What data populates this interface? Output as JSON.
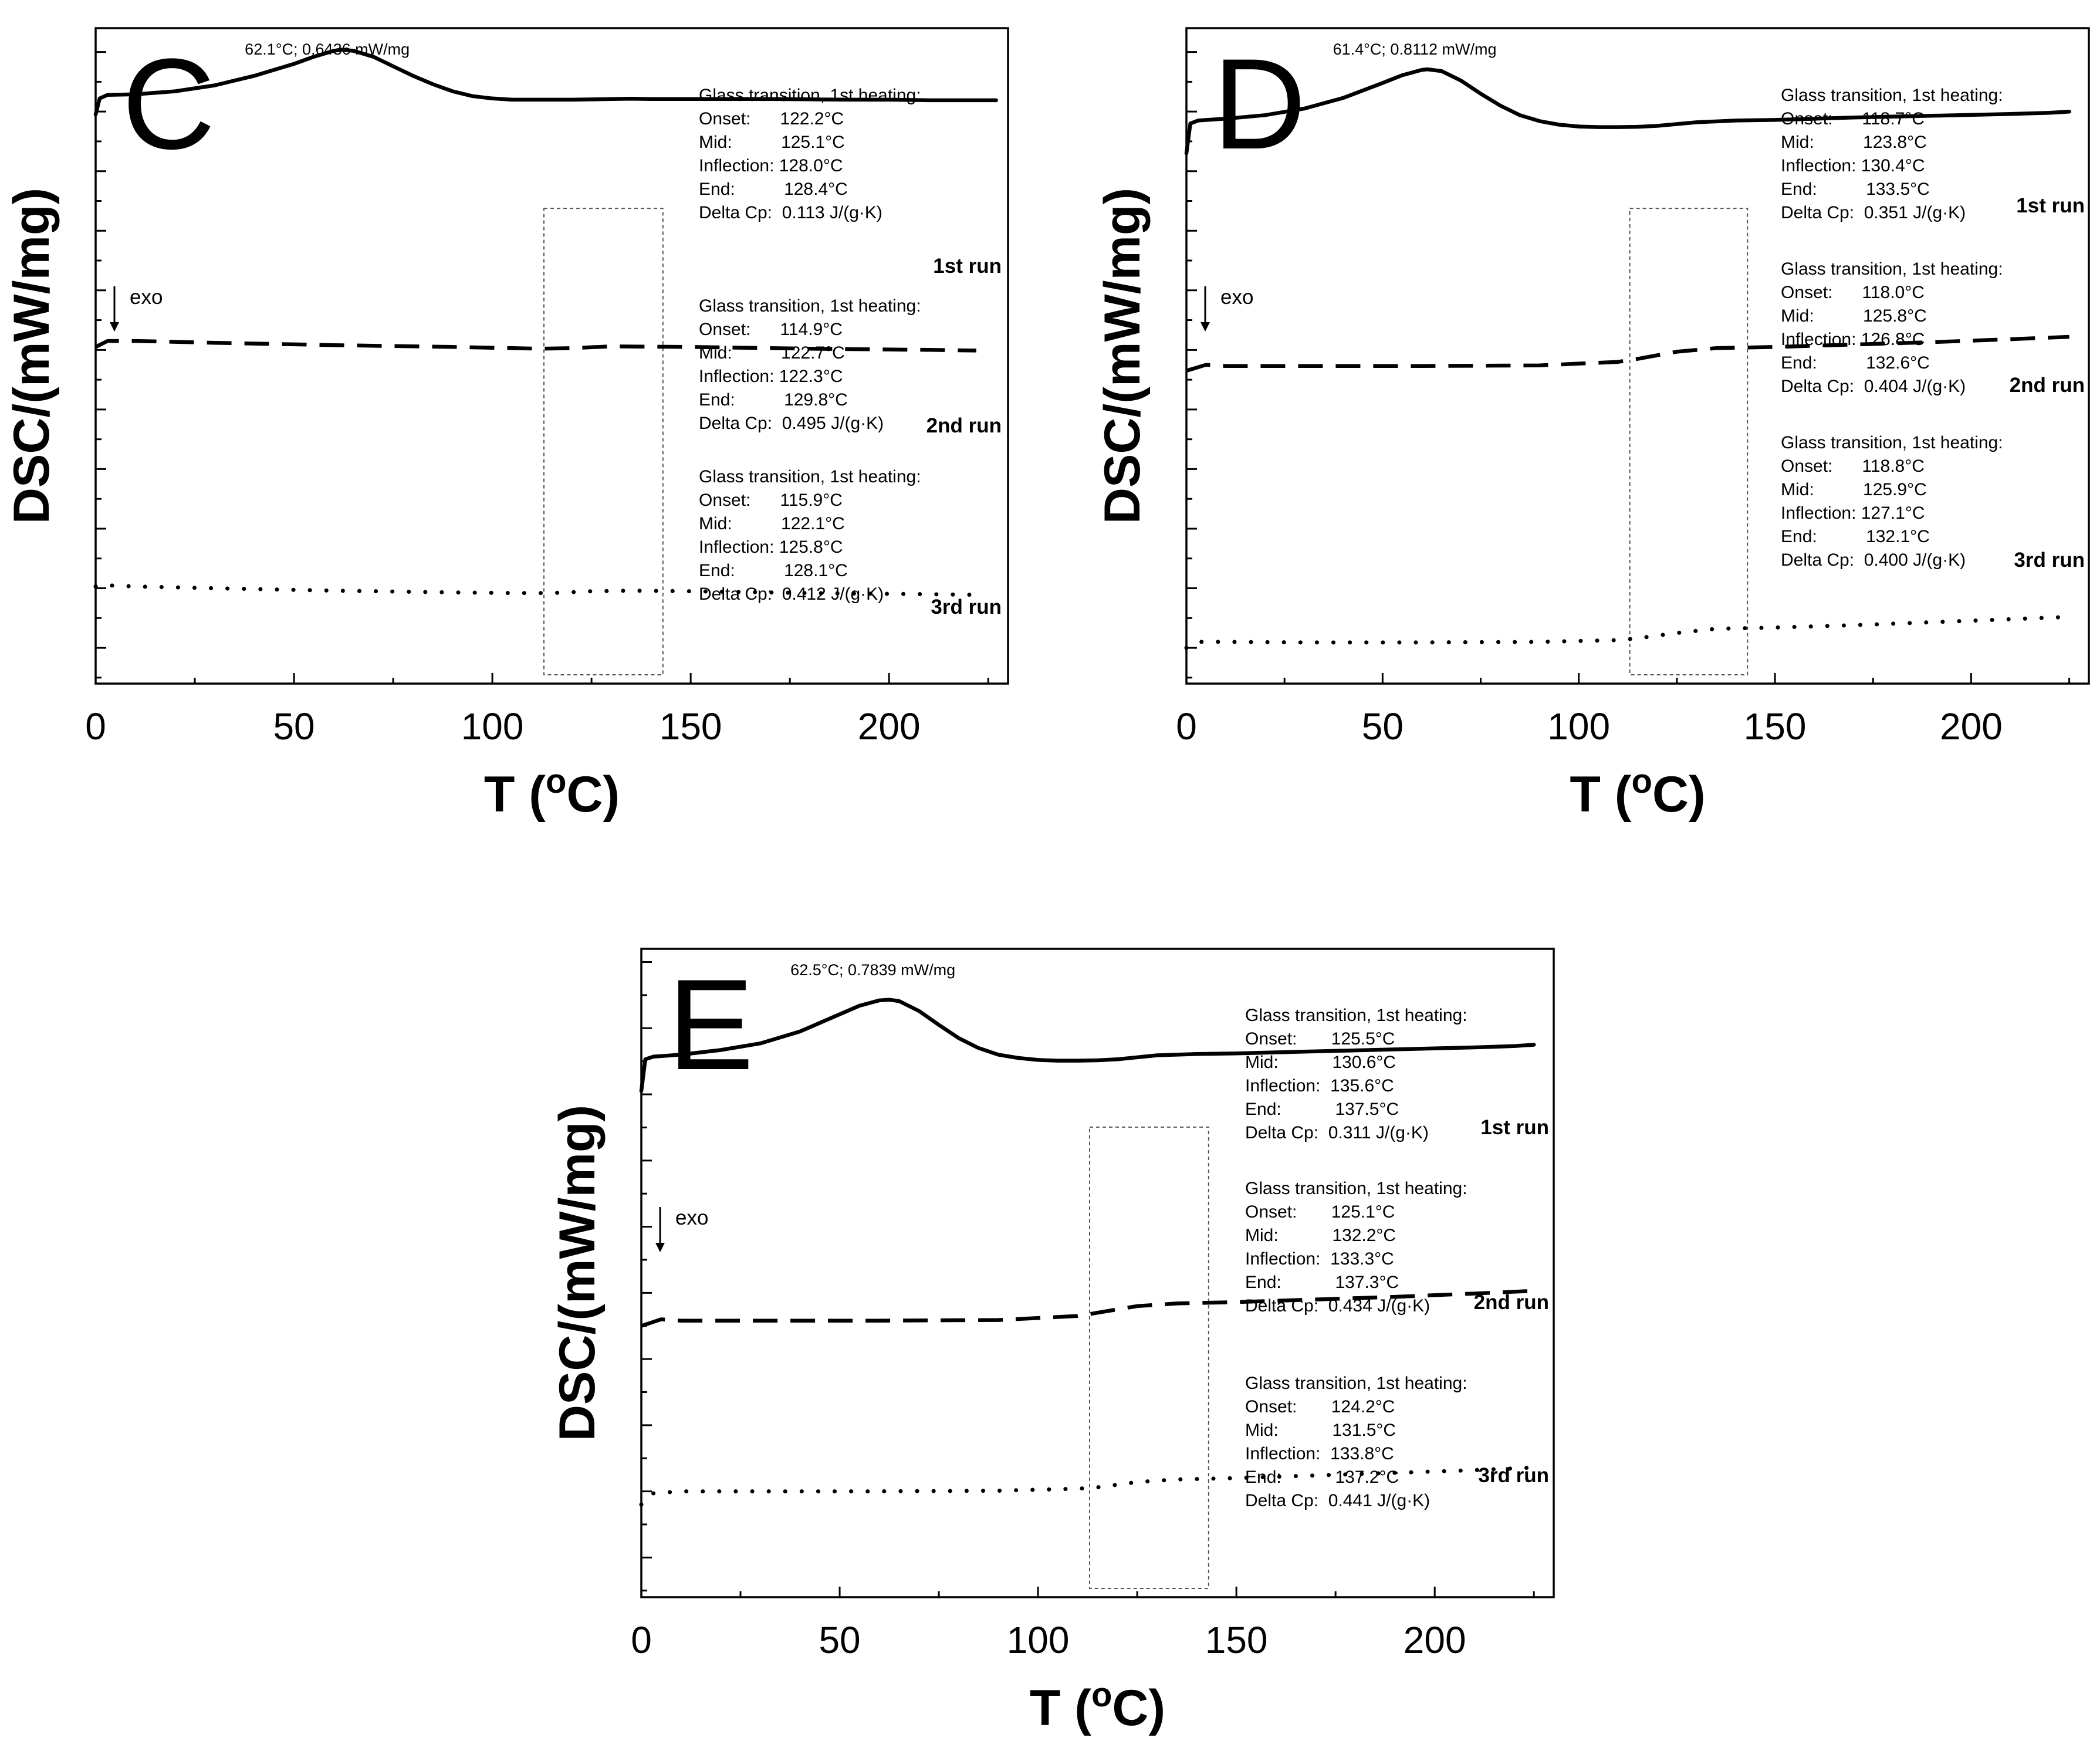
{
  "chart_data": [
    {
      "panel": "C",
      "type": "line",
      "xlabel": "T (oC)",
      "ylabel": "DSC/(mW/mg)",
      "xlim": [
        0,
        230
      ],
      "xticks": [
        0,
        50,
        100,
        150,
        200
      ],
      "peak_annotation": "62.1°C; 0.6436 mW/mg",
      "exo_label": "exo",
      "zoom_region": [
        113,
        143
      ],
      "series": [
        {
          "name": "1st run",
          "style": "solid",
          "level": 8.4,
          "x": [
            0,
            1,
            3,
            10,
            20,
            30,
            40,
            50,
            55,
            60,
            62.1,
            65,
            70,
            75,
            80,
            85,
            90,
            95,
            100,
            105,
            110,
            120,
            130,
            135,
            140,
            150,
            160,
            170,
            180,
            190,
            200,
            210,
            220,
            227
          ],
          "y": [
            -0.45,
            -0.18,
            -0.12,
            -0.11,
            -0.06,
            0.04,
            0.2,
            0.4,
            0.52,
            0.62,
            0.64,
            0.62,
            0.52,
            0.36,
            0.2,
            0.06,
            -0.06,
            -0.14,
            -0.18,
            -0.2,
            -0.2,
            -0.2,
            -0.19,
            -0.185,
            -0.19,
            -0.19,
            -0.19,
            -0.19,
            -0.195,
            -0.2,
            -0.2,
            -0.21,
            -0.21,
            -0.21
          ],
          "glass_transition": {
            "heading": "Glass transition, 1st heating:",
            "lines": [
              "Onset:      122.2°C",
              "Mid:          125.1°C",
              "Inflection: 128.0°C",
              "End:          128.4°C",
              "Delta Cp:  0.113 J/(g·K)"
            ]
          }
        },
        {
          "name": "2nd run",
          "style": "dashed",
          "level": 4.15,
          "x": [
            0,
            3,
            10,
            30,
            60,
            90,
            105,
            112,
            120,
            130,
            150,
            180,
            210,
            222
          ],
          "y": [
            -0.1,
            0.0,
            0.0,
            -0.03,
            -0.07,
            -0.1,
            -0.12,
            -0.13,
            -0.12,
            -0.09,
            -0.1,
            -0.13,
            -0.15,
            -0.16
          ],
          "glass_transition": {
            "heading": "Glass transition, 1st heating:",
            "lines": [
              "Onset:      114.9°C",
              "Mid:          122.7°C",
              "Inflection: 122.3°C",
              "End:          129.8°C",
              "Delta Cp:  0.495 J/(g·K)"
            ]
          }
        },
        {
          "name": "3rd run",
          "style": "dotted",
          "level": 0.05,
          "x": [
            0,
            3,
            10,
            30,
            60,
            90,
            105,
            115,
            125,
            135,
            150,
            180,
            210,
            222
          ],
          "y": [
            -0.02,
            0.0,
            -0.02,
            -0.05,
            -0.09,
            -0.12,
            -0.13,
            -0.13,
            -0.1,
            -0.09,
            -0.1,
            -0.13,
            -0.15,
            -0.16
          ],
          "glass_transition": {
            "heading": "Glass transition, 1st heating:",
            "lines": [
              "Onset:      115.9°C",
              "Mid:          122.1°C",
              "Inflection: 125.8°C",
              "End:          128.1°C",
              "Delta Cp:  0.412 J/(g·K)"
            ]
          }
        }
      ]
    },
    {
      "panel": "D",
      "type": "line",
      "xlabel": "T (oC)",
      "ylabel": "DSC/(mW/mg)",
      "xlim": [
        0,
        230
      ],
      "xticks": [
        0,
        50,
        100,
        150,
        200
      ],
      "peak_annotation": "61.4°C; 0.8112 mW/mg",
      "exo_label": "exo",
      "zoom_region": [
        113,
        143
      ],
      "series": [
        {
          "name": "1st run",
          "style": "solid",
          "level": 7.9,
          "x": [
            0,
            1,
            3,
            10,
            20,
            30,
            40,
            50,
            55,
            60,
            61.4,
            65,
            70,
            75,
            80,
            85,
            90,
            95,
            100,
            105,
            110,
            115,
            120,
            130,
            140,
            150,
            170,
            190,
            210,
            220,
            225
          ],
          "y": [
            -0.6,
            -0.1,
            -0.05,
            -0.02,
            0.04,
            0.15,
            0.33,
            0.58,
            0.71,
            0.8,
            0.81,
            0.78,
            0.62,
            0.4,
            0.2,
            0.04,
            -0.06,
            -0.12,
            -0.15,
            -0.16,
            -0.16,
            -0.155,
            -0.14,
            -0.08,
            -0.05,
            -0.04,
            0.0,
            0.03,
            0.06,
            0.08,
            0.1
          ],
          "glass_transition": {
            "heading": "Glass transition, 1st heating:",
            "lines": [
              "Onset:      118.7°C",
              "Mid:          123.8°C",
              "Inflection: 130.4°C",
              "End:          133.5°C",
              "Delta Cp:  0.351 J/(g·K)"
            ]
          }
        },
        {
          "name": "2nd run",
          "style": "dashed",
          "level": 3.75,
          "x": [
            0,
            5,
            10,
            30,
            60,
            90,
            110,
            115,
            125,
            135,
            150,
            170,
            190,
            210,
            225
          ],
          "y": [
            -0.1,
            0.0,
            -0.02,
            -0.02,
            -0.02,
            -0.01,
            0.05,
            0.1,
            0.22,
            0.28,
            0.3,
            0.34,
            0.38,
            0.43,
            0.47
          ],
          "glass_transition": {
            "heading": "Glass transition, 1st heating:",
            "lines": [
              "Onset:      118.0°C",
              "Mid:          125.8°C",
              "Inflection: 126.8°C",
              "End:          132.6°C",
              "Delta Cp:  0.404 J/(g·K)"
            ]
          }
        },
        {
          "name": "3rd run",
          "style": "dotted",
          "level": -0.9,
          "x": [
            0,
            3,
            10,
            30,
            60,
            90,
            110,
            115,
            125,
            135,
            150,
            170,
            190,
            210,
            225
          ],
          "y": [
            -0.1,
            0.0,
            0.0,
            -0.01,
            -0.01,
            0.0,
            0.03,
            0.06,
            0.15,
            0.22,
            0.24,
            0.28,
            0.33,
            0.38,
            0.42
          ],
          "glass_transition": {
            "heading": "Glass transition, 1st heating:",
            "lines": [
              "Onset:      118.8°C",
              "Mid:          125.9°C",
              "Inflection: 127.1°C",
              "End:          132.1°C",
              "Delta Cp:  0.400 J/(g·K)"
            ]
          }
        }
      ]
    },
    {
      "panel": "E",
      "type": "line",
      "xlabel": "T (oC)",
      "ylabel": "DSC/(mW/mg)",
      "xlim": [
        0,
        230
      ],
      "xticks": [
        0,
        50,
        100,
        150,
        200
      ],
      "peak_annotation": "62.5°C; 0.7839 mW/mg",
      "exo_label": "exo",
      "zoom_region": [
        113,
        143
      ],
      "series": [
        {
          "name": "1st run",
          "style": "solid",
          "level": 7.65,
          "x": [
            0,
            1,
            3,
            10,
            20,
            30,
            40,
            50,
            55,
            60,
            62.5,
            65,
            70,
            75,
            80,
            85,
            90,
            95,
            100,
            105,
            110,
            115,
            120,
            130,
            140,
            150,
            170,
            190,
            210,
            220,
            225
          ],
          "y": [
            -0.6,
            -0.12,
            -0.08,
            -0.05,
            0.02,
            0.12,
            0.3,
            0.56,
            0.69,
            0.77,
            0.78,
            0.76,
            0.61,
            0.4,
            0.2,
            0.05,
            -0.05,
            -0.1,
            -0.13,
            -0.14,
            -0.14,
            -0.135,
            -0.12,
            -0.06,
            -0.04,
            -0.03,
            0.0,
            0.03,
            0.06,
            0.08,
            0.1
          ],
          "glass_transition": {
            "heading": "Glass transition, 1st heating:",
            "lines": [
              "Onset:       125.5°C",
              "Mid:           130.6°C",
              "Inflection:  135.6°C",
              "End:           137.5°C",
              "Delta Cp:  0.311 J/(g·K)"
            ]
          }
        },
        {
          "name": "2nd run",
          "style": "dashed",
          "level": 3.6,
          "x": [
            0,
            5,
            10,
            30,
            60,
            90,
            110,
            115,
            125,
            135,
            150,
            170,
            190,
            210,
            225
          ],
          "y": [
            -0.1,
            0.0,
            -0.02,
            -0.02,
            -0.02,
            -0.01,
            0.05,
            0.1,
            0.2,
            0.24,
            0.26,
            0.3,
            0.34,
            0.39,
            0.43
          ],
          "glass_transition": {
            "heading": "Glass transition, 1st heating:",
            "lines": [
              "Onset:       125.1°C",
              "Mid:           132.2°C",
              "Inflection:  133.3°C",
              "End:           137.3°C",
              "Delta Cp:  0.434 J/(g·K)"
            ]
          }
        },
        {
          "name": "3rd run",
          "style": "dotted",
          "level": 1.0,
          "x": [
            0,
            3,
            10,
            30,
            60,
            90,
            110,
            115,
            125,
            135,
            150,
            170,
            190,
            210,
            225
          ],
          "y": [
            -0.2,
            -0.03,
            0.0,
            0.0,
            0.0,
            0.01,
            0.04,
            0.06,
            0.14,
            0.18,
            0.2,
            0.24,
            0.28,
            0.32,
            0.36
          ],
          "glass_transition": {
            "heading": "Glass transition, 1st heating:",
            "lines": [
              "Onset:       124.2°C",
              "Mid:           131.5°C",
              "Inflection:  133.8°C",
              "End:           137.2°C",
              "Delta Cp:  0.441 J/(g·K)"
            ]
          }
        }
      ]
    }
  ]
}
